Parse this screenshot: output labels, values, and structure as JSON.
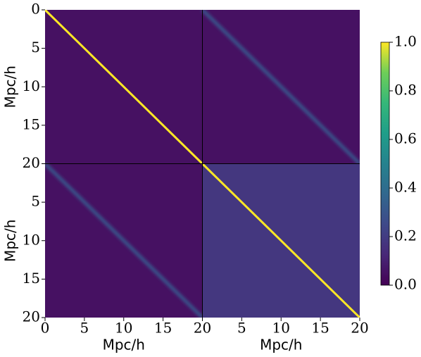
{
  "chart_data": {
    "type": "heatmap",
    "colormap": "viridis",
    "blocks": [
      [
        {
          "background": 0.05,
          "diagonal": 1.0
        },
        {
          "background": 0.05,
          "diagonal": 0.3
        }
      ],
      [
        {
          "background": 0.05,
          "diagonal": 0.3
        },
        {
          "background": 0.18,
          "diagonal": 1.0
        }
      ]
    ],
    "x_panels": [
      {
        "xlabel": "Mpc/h",
        "xlim": [
          0,
          20
        ],
        "xticks": [
          0,
          5,
          10,
          15,
          20
        ]
      },
      {
        "xlabel": "Mpc/h",
        "xlim": [
          0,
          20
        ],
        "xticks": [
          5,
          10,
          15,
          20
        ]
      }
    ],
    "y_panels": [
      {
        "ylabel": "Mpc/h",
        "ylim": [
          0,
          20
        ],
        "yticks": [
          0,
          5,
          10,
          15,
          20
        ]
      },
      {
        "ylabel": "Mpc/h",
        "ylim": [
          0,
          20
        ],
        "yticks": [
          5,
          10,
          15,
          20
        ]
      }
    ],
    "colorbar": {
      "lim": [
        0,
        1
      ],
      "ticks": [
        {
          "value": 0,
          "label": "0.0"
        },
        {
          "value": 0.2,
          "label": "0.2"
        },
        {
          "value": 0.4,
          "label": "0.4"
        },
        {
          "value": 0.6,
          "label": "0.6"
        },
        {
          "value": 0.8,
          "label": "0.8"
        },
        {
          "value": 1.0,
          "label": "1.0"
        }
      ]
    }
  }
}
